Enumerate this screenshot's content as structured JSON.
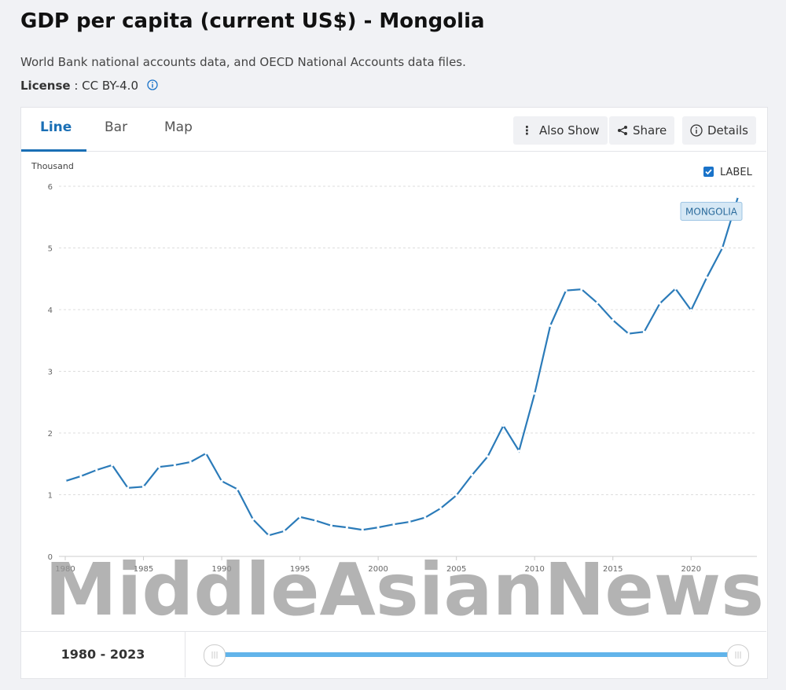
{
  "header": {
    "title": "GDP per capita (current US$) - Mongolia",
    "source": "World Bank national accounts data, and OECD National Accounts data files.",
    "license_label": "License",
    "license_value": ": CC BY-4.0"
  },
  "tabs": [
    "Line",
    "Bar",
    "Map"
  ],
  "buttons": [
    "Also Show",
    "Share",
    "Details"
  ],
  "range_text": "1980 - 2023",
  "chart_data": {
    "type": "line",
    "y_label": "Thousand",
    "label_toggle": "LABEL",
    "watermark": "MiddleAsianNews",
    "x": [
      1980,
      1981,
      1982,
      1983,
      1984,
      1985,
      1986,
      1987,
      1988,
      1989,
      1990,
      1991,
      1992,
      1993,
      1994,
      1995,
      1996,
      1997,
      1998,
      1999,
      2000,
      2001,
      2002,
      2003,
      2004,
      2005,
      2006,
      2007,
      2008,
      2009,
      2010,
      2011,
      2012,
      2013,
      2014,
      2015,
      2016,
      2017,
      2018,
      2019,
      2020,
      2021,
      2022,
      2023
    ],
    "series": [
      {
        "name": "MONGOLIA",
        "color": "#2b7bb9",
        "values": [
          1.22,
          1.3,
          1.4,
          1.48,
          1.11,
          1.13,
          1.45,
          1.48,
          1.53,
          1.67,
          1.22,
          1.09,
          0.6,
          0.34,
          0.41,
          0.64,
          0.58,
          0.5,
          0.47,
          0.43,
          0.47,
          0.52,
          0.56,
          0.63,
          0.78,
          0.99,
          1.32,
          1.62,
          2.12,
          1.71,
          2.64,
          3.74,
          4.31,
          4.33,
          4.11,
          3.83,
          3.61,
          3.64,
          4.1,
          4.34,
          3.99,
          4.52,
          5.0,
          5.83
        ]
      }
    ],
    "xlim": [
      1980,
      2023
    ],
    "xticks": [
      1980,
      1985,
      1990,
      1995,
      2000,
      2005,
      2010,
      2015,
      2020
    ],
    "ylim": [
      0,
      6
    ],
    "yticks": [
      0,
      1,
      2,
      3,
      4,
      5,
      6
    ],
    "grid": true
  }
}
